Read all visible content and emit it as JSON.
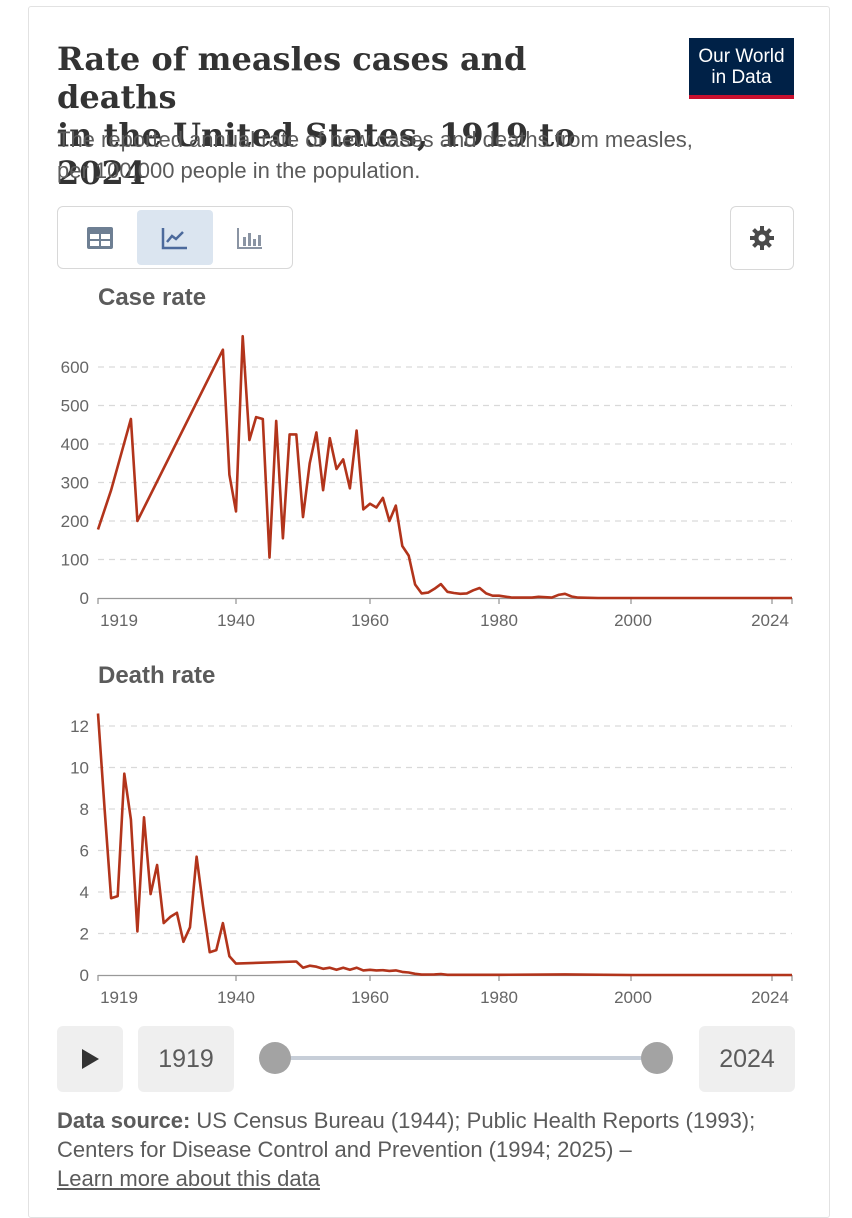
{
  "header": {
    "title_line1": "Rate of measles cases and deaths",
    "title_line2": "in the United States, 1919 to 2024",
    "subtitle_line1": "The reported annual rate of new cases and deaths from measles,",
    "subtitle_line2": "per 100,000 people in the population.",
    "logo_line1": "Our World",
    "logo_line2": "in Data"
  },
  "toolbar": {
    "tabs": [
      {
        "name": "table",
        "icon": "table-icon"
      },
      {
        "name": "line",
        "icon": "line-chart-icon",
        "active": true
      },
      {
        "name": "bar",
        "icon": "bar-chart-icon"
      }
    ],
    "settings_icon": "gear-icon"
  },
  "colors": {
    "line": "#b2341b",
    "grid": "#d9d9d9",
    "axis": "#666666",
    "logo_bg": "#002147",
    "logo_accent": "#c8102e"
  },
  "chart_data": [
    {
      "type": "line",
      "title": "Case rate",
      "ylim": [
        0,
        600
      ],
      "yticks": [
        0,
        100,
        200,
        300,
        400,
        500,
        600
      ],
      "xlim": [
        1919,
        2024
      ],
      "xticks": [
        "1919",
        "1940",
        "1960",
        "1980",
        "2000",
        "2024"
      ],
      "series": [
        {
          "name": "Case rate",
          "x": [
            1919,
            1921,
            1924,
            1925,
            1938,
            1939,
            1940,
            1941,
            1942,
            1943,
            1944,
            1945,
            1946,
            1947,
            1948,
            1949,
            1950,
            1951,
            1952,
            1953,
            1954,
            1955,
            1956,
            1957,
            1958,
            1959,
            1960,
            1961,
            1962,
            1963,
            1964,
            1965,
            1966,
            1967,
            1968,
            1969,
            1970,
            1971,
            1972,
            1973,
            1974,
            1975,
            1976,
            1977,
            1978,
            1979,
            1980,
            1982,
            1985,
            1986,
            1987,
            1988,
            1989,
            1990,
            1991,
            1992,
            1995,
            2000,
            2010,
            2014,
            2015,
            2019,
            2024
          ],
          "values": [
            178,
            280,
            465,
            200,
            645,
            320,
            225,
            680,
            410,
            470,
            465,
            105,
            460,
            155,
            425,
            425,
            210,
            350,
            430,
            280,
            415,
            335,
            360,
            285,
            435,
            230,
            245,
            235,
            260,
            200,
            240,
            135,
            110,
            35,
            12,
            14,
            24,
            36,
            16,
            13,
            11,
            12,
            20,
            26,
            12,
            6,
            6,
            1,
            1,
            3,
            2,
            1,
            8,
            11,
            4,
            1,
            0,
            0,
            0,
            0,
            0,
            0,
            0
          ]
        }
      ]
    },
    {
      "type": "line",
      "title": "Death rate",
      "ylim": [
        0,
        12
      ],
      "yticks": [
        0,
        2,
        4,
        6,
        8,
        10,
        12
      ],
      "xlim": [
        1919,
        2024
      ],
      "xticks": [
        "1919",
        "1940",
        "1960",
        "1980",
        "2000",
        "2024"
      ],
      "series": [
        {
          "name": "Death rate",
          "x": [
            1919,
            1920,
            1921,
            1922,
            1923,
            1924,
            1925,
            1926,
            1927,
            1928,
            1929,
            1930,
            1931,
            1932,
            1933,
            1934,
            1935,
            1936,
            1937,
            1938,
            1939,
            1940,
            1949,
            1950,
            1951,
            1952,
            1953,
            1954,
            1955,
            1956,
            1957,
            1958,
            1959,
            1960,
            1961,
            1962,
            1963,
            1964,
            1965,
            1966,
            1967,
            1968,
            1970,
            1971,
            1972,
            1975,
            1980,
            1990,
            2000,
            2024
          ],
          "values": [
            12.6,
            8.0,
            3.7,
            3.8,
            9.7,
            7.5,
            2.1,
            7.6,
            3.9,
            5.3,
            2.5,
            2.8,
            3.0,
            1.6,
            2.3,
            5.7,
            3.3,
            1.1,
            1.2,
            2.5,
            0.9,
            0.55,
            0.65,
            0.35,
            0.45,
            0.4,
            0.3,
            0.35,
            0.25,
            0.35,
            0.25,
            0.35,
            0.22,
            0.25,
            0.22,
            0.23,
            0.2,
            0.22,
            0.15,
            0.12,
            0.06,
            0.02,
            0.03,
            0.05,
            0.01,
            0.01,
            0.01,
            0.03,
            0.0,
            0.0
          ]
        }
      ]
    }
  ],
  "timeline": {
    "start_label": "1919",
    "end_label": "2024",
    "play_icon": "play-icon"
  },
  "source": {
    "label": "Data source:",
    "text": "US Census Bureau (1944); Public Health Reports (1993); Centers for Disease Control and Prevention (1994; 2025) –",
    "link": "Learn more about this data"
  }
}
